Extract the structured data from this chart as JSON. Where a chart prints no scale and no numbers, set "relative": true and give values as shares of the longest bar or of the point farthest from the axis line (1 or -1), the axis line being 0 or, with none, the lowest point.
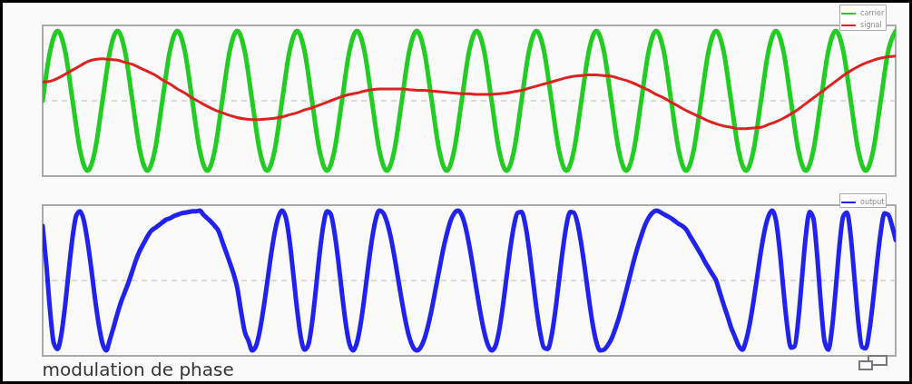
{
  "chart_data": [
    {
      "type": "line",
      "relative": true,
      "tick_labels": false,
      "legend": "top right",
      "ref_lines": [
        {
          "axis": "y",
          "value": 0,
          "line_style": "dashed",
          "color": "#bbbbbb"
        }
      ],
      "categories": [
        null,
        null,
        null,
        null,
        null,
        null,
        null,
        null,
        null,
        null,
        null,
        null,
        null,
        null,
        null,
        null,
        null,
        null,
        null,
        null,
        null,
        null,
        null,
        null,
        null,
        null,
        null,
        null,
        null,
        null,
        null,
        null,
        null,
        null,
        null,
        null,
        null,
        null,
        null,
        null,
        null,
        null,
        null,
        null,
        null,
        null,
        null,
        null,
        null,
        null,
        null,
        null,
        null,
        null,
        null,
        null,
        null,
        null,
        null,
        null,
        null,
        null,
        null,
        null,
        null,
        null,
        null,
        null,
        null,
        null,
        null,
        null,
        null,
        null,
        null,
        null,
        null,
        null,
        null,
        null,
        null,
        null,
        null,
        null,
        null,
        null,
        null,
        null,
        null,
        null,
        null,
        null,
        null,
        null,
        null,
        null,
        null,
        null,
        null,
        null,
        null,
        null,
        null,
        null,
        null,
        null,
        null,
        null,
        null,
        null,
        null,
        null,
        null,
        null,
        null
      ],
      "series": [
        {
          "name": "carrier",
          "color": "#22cc22",
          "values": [
            0,
            0.71,
            1,
            0.71,
            0,
            -0.71,
            -1,
            -0.71,
            0,
            0.71,
            1,
            0.71,
            0,
            -0.71,
            -1,
            -0.71,
            0,
            0.71,
            1,
            0.71,
            0,
            -0.71,
            -1,
            -0.71,
            0,
            0.71,
            1,
            0.71,
            0,
            -0.71,
            -1,
            -0.71,
            0,
            0.71,
            1,
            0.71,
            0,
            -0.71,
            -1,
            -0.71,
            0,
            0.71,
            1,
            0.71,
            0,
            -0.71,
            -1,
            -0.71,
            0,
            0.71,
            1,
            0.71,
            0,
            -0.71,
            -1,
            -0.71,
            0,
            0.71,
            1,
            0.71,
            0,
            -0.71,
            -1,
            -0.71,
            0,
            0.71,
            1,
            0.71,
            0,
            -0.71,
            -1,
            -0.71,
            0,
            0.71,
            1,
            0.71,
            0,
            -0.71,
            -1,
            -0.71,
            0,
            0.71,
            1,
            0.71,
            0,
            -0.71,
            -1,
            -0.71,
            0,
            0.71,
            1,
            0.71,
            0,
            -0.71,
            -1,
            -0.71,
            0,
            0.71,
            1,
            0.71,
            0,
            -0.71,
            -1,
            -0.71,
            0,
            0.71,
            1,
            0.71,
            0,
            -0.71,
            -1,
            -0.71,
            0,
            0.71,
            1
          ]
        },
        {
          "name": "signal",
          "color": "#dd2222",
          "values": [
            0.27,
            0.28,
            0.32,
            0.38,
            0.44,
            0.5,
            0.56,
            0.59,
            0.6,
            0.59,
            0.58,
            0.55,
            0.52,
            0.47,
            0.42,
            0.37,
            0.3,
            0.24,
            0.17,
            0.11,
            0.04,
            -0.02,
            -0.08,
            -0.13,
            -0.17,
            -0.21,
            -0.24,
            -0.26,
            -0.27,
            -0.27,
            -0.26,
            -0.25,
            -0.23,
            -0.2,
            -0.17,
            -0.13,
            -0.1,
            -0.06,
            -0.02,
            0.02,
            0.06,
            0.09,
            0.11,
            0.14,
            0.16,
            0.17,
            0.17,
            0.17,
            0.17,
            0.16,
            0.15,
            0.15,
            0.14,
            0.13,
            0.12,
            0.11,
            0.1,
            0.1,
            0.09,
            0.09,
            0.09,
            0.1,
            0.11,
            0.13,
            0.15,
            0.18,
            0.21,
            0.24,
            0.27,
            0.3,
            0.33,
            0.35,
            0.36,
            0.37,
            0.37,
            0.36,
            0.35,
            0.32,
            0.29,
            0.25,
            0.2,
            0.15,
            0.09,
            0.04,
            -0.02,
            -0.08,
            -0.14,
            -0.19,
            -0.24,
            -0.29,
            -0.33,
            -0.36,
            -0.38,
            -0.4,
            -0.4,
            -0.39,
            -0.38,
            -0.34,
            -0.3,
            -0.25,
            -0.19,
            -0.12,
            -0.04,
            0.04,
            0.12,
            0.2,
            0.28,
            0.36,
            0.43,
            0.49,
            0.54,
            0.58,
            0.61,
            0.63,
            0.64
          ]
        }
      ]
    },
    {
      "type": "line",
      "relative": true,
      "tick_labels": false,
      "legend": "top right",
      "ref_lines": [
        {
          "axis": "y",
          "value": 0,
          "line_style": "dashed",
          "color": "#bbbbbb"
        }
      ],
      "annotations": [
        "modulation de phase"
      ],
      "categories": [
        null,
        null,
        null,
        null,
        null,
        null,
        null,
        null,
        null,
        null,
        null,
        null,
        null,
        null,
        null,
        null,
        null,
        null,
        null,
        null,
        null,
        null,
        null,
        null,
        null,
        null,
        null,
        null,
        null,
        null,
        null,
        null,
        null,
        null,
        null,
        null,
        null,
        null,
        null,
        null,
        null,
        null,
        null,
        null,
        null,
        null,
        null,
        null,
        null,
        null,
        null,
        null,
        null,
        null,
        null,
        null,
        null,
        null,
        null,
        null,
        null,
        null,
        null,
        null,
        null,
        null,
        null,
        null,
        null,
        null,
        null,
        null,
        null,
        null,
        null,
        null,
        null,
        null,
        null,
        null,
        null,
        null,
        null,
        null,
        null,
        null,
        null,
        null,
        null,
        null,
        null,
        null,
        null,
        null,
        null,
        null,
        null,
        null,
        null,
        null,
        null,
        null,
        null,
        null,
        null,
        null,
        null,
        null,
        null,
        null,
        null,
        null,
        null,
        null,
        null,
        null,
        null,
        null,
        null,
        null,
        null,
        null,
        null,
        null,
        null,
        null,
        null,
        null,
        null,
        null,
        null,
        null,
        null,
        null,
        null,
        null,
        null,
        null,
        null,
        null,
        null,
        null,
        null,
        null,
        null,
        null,
        null,
        null,
        null,
        null,
        null,
        null,
        null,
        null,
        null,
        null,
        null,
        null,
        null,
        null,
        null,
        null,
        null,
        null,
        null,
        null,
        null,
        null,
        null,
        null,
        null,
        null,
        null,
        null,
        null,
        null,
        null,
        null,
        null,
        null,
        null,
        null,
        null,
        null,
        null,
        null,
        null,
        null,
        null,
        null,
        null,
        null,
        null,
        null,
        null,
        null,
        null,
        null,
        null,
        null,
        null,
        null,
        null,
        null,
        null,
        null,
        null,
        null,
        null,
        null,
        null,
        null,
        null,
        null,
        null,
        null,
        null,
        null,
        null,
        null,
        null,
        null,
        null,
        null,
        null,
        null,
        null,
        null,
        null
      ],
      "series": [
        {
          "name": "output",
          "color": "#2222ee",
          "values": [
            0.78,
            0.22,
            -0.44,
            -0.9,
            -0.98,
            -0.77,
            -0.36,
            0.15,
            0.62,
            0.93,
            0.99,
            0.86,
            0.56,
            0.17,
            -0.26,
            -0.63,
            -0.9,
            -1,
            -0.84,
            -0.66,
            -0.47,
            -0.3,
            -0.16,
            -0.02,
            0.14,
            0.3,
            0.43,
            0.53,
            0.63,
            0.71,
            0.75,
            0.79,
            0.83,
            0.87,
            0.89,
            0.92,
            0.94,
            0.96,
            0.97,
            0.98,
            0.99,
            0.99,
            1,
            0.94,
            0.89,
            0.84,
            0.78,
            0.71,
            0.56,
            0.41,
            0.26,
            0.1,
            -0.1,
            -0.43,
            -0.73,
            -0.86,
            -1,
            -0.94,
            -0.73,
            -0.41,
            -0.04,
            0.35,
            0.68,
            0.91,
            1,
            0.9,
            0.57,
            0.09,
            -0.41,
            -0.81,
            -0.99,
            -0.92,
            -0.61,
            -0.14,
            0.37,
            0.78,
            0.99,
            0.95,
            0.69,
            0.29,
            -0.18,
            -0.61,
            -0.91,
            -1,
            -0.89,
            -0.62,
            -0.24,
            0.19,
            0.58,
            0.87,
            1,
            0.97,
            0.84,
            0.63,
            0.35,
            0.03,
            -0.29,
            -0.58,
            -0.81,
            -0.95,
            -1,
            -0.96,
            -0.84,
            -0.65,
            -0.41,
            -0.13,
            0.15,
            0.43,
            0.66,
            0.85,
            0.96,
            1,
            0.94,
            0.77,
            0.51,
            0.2,
            -0.14,
            -0.46,
            -0.73,
            -0.92,
            -1,
            -0.94,
            -0.72,
            -0.37,
            0.05,
            0.46,
            0.79,
            0.97,
            0.98,
            0.8,
            0.46,
            0.03,
            -0.4,
            -0.75,
            -0.96,
            -0.98,
            -0.8,
            -0.45,
            -0.01,
            0.43,
            0.79,
            0.98,
            0.97,
            0.81,
            0.51,
            0.14,
            -0.26,
            -0.62,
            -0.88,
            -1,
            -0.99,
            -0.93,
            -0.84,
            -0.7,
            -0.54,
            -0.35,
            -0.14,
            0.07,
            0.28,
            0.47,
            0.64,
            0.79,
            0.9,
            0.97,
            1,
            0.98,
            0.95,
            0.92,
            0.89,
            0.85,
            0.81,
            0.78,
            0.73,
            0.64,
            0.55,
            0.46,
            0.37,
            0.27,
            0.18,
            0.09,
            0,
            -0.17,
            -0.34,
            -0.5,
            -0.67,
            -0.8,
            -0.93,
            -0.99,
            -0.86,
            -0.62,
            -0.3,
            0.06,
            0.42,
            0.72,
            0.92,
            1,
            0.86,
            0.44,
            -0.13,
            -0.65,
            -0.96,
            -0.94,
            -0.55,
            0.06,
            0.65,
            0.98,
            0.89,
            0.37,
            -0.33,
            -0.87,
            -0.99,
            -0.68,
            -0.11,
            0.51,
            0.92,
            0.97,
            0.63,
            0.03,
            -0.58,
            -0.95,
            -0.97,
            -0.71,
            -0.27,
            0.24,
            0.69,
            0.96,
            0.94,
            0.79,
            0.58
          ]
        }
      ]
    }
  ]
}
